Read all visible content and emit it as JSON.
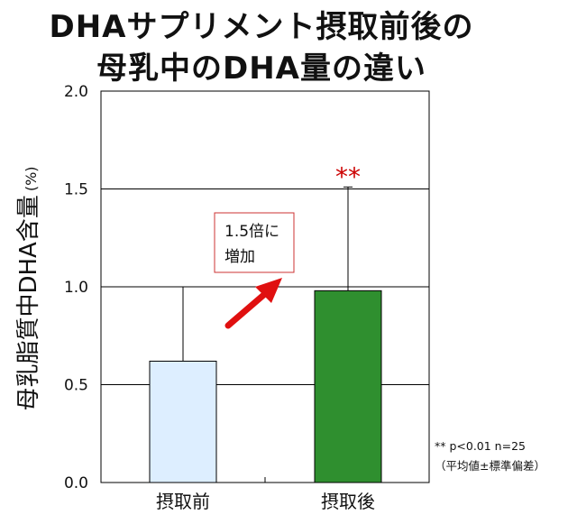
{
  "title": {
    "line1": "DHAサプリメント摂取前後の",
    "line2": "母乳中のDHA量の違い"
  },
  "chart_data": {
    "type": "bar",
    "categories": [
      "摂取前",
      "摂取後"
    ],
    "values": [
      0.62,
      0.98
    ],
    "error_upper": [
      1.0,
      1.51
    ],
    "ylabel": "母乳脂質中DHA含量",
    "ylabel_unit": "(%)",
    "ylim": [
      0,
      2.0
    ],
    "yticks": [
      "0.0",
      "0.5",
      "1.0",
      "1.5",
      "2.0"
    ],
    "grid": true,
    "colors": [
      "#ddeeff",
      "#2f8f2f"
    ],
    "significance_mark": "**",
    "significance_color": "#cc0000"
  },
  "annotation": {
    "line1": "1.5倍に",
    "line2": "増加",
    "arrow_color": "#e01010"
  },
  "footnote": {
    "line1": "** p<0.01 n=25",
    "line2": "（平均値±標準偏差）"
  }
}
